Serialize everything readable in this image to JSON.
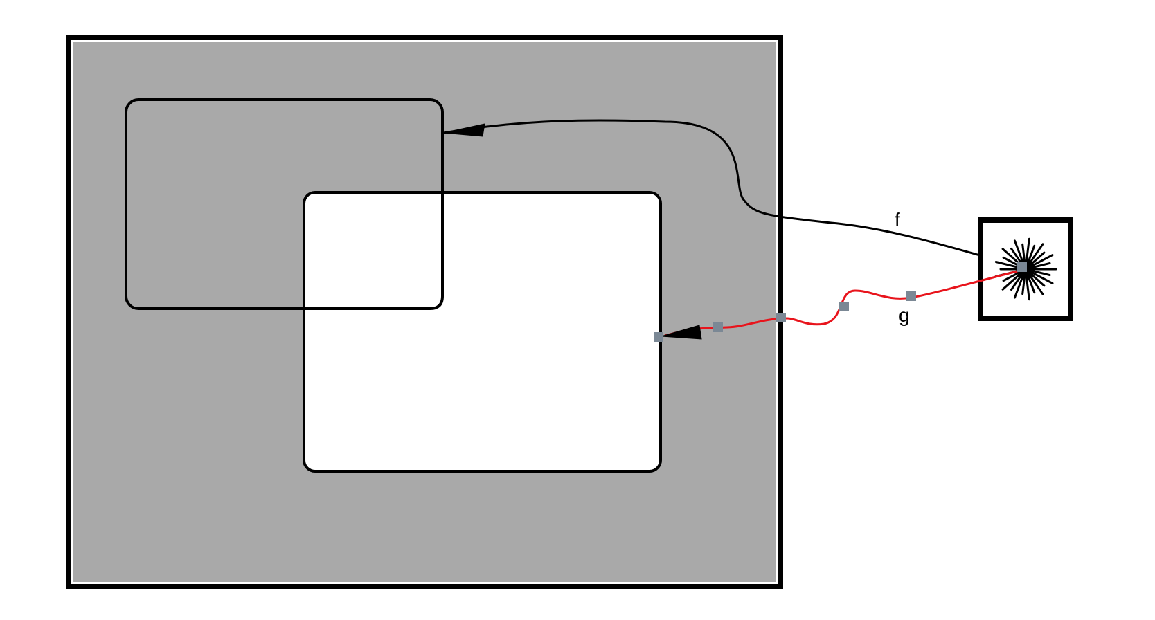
{
  "diagram": {
    "title": "",
    "colors": {
      "canvas": "#ffffff",
      "container_fill": "#a9a9a9",
      "container_border": "#000000",
      "container_inner_line": "#ffffff",
      "inner_box_fill": "#ffffff",
      "stroke": "#000000",
      "edge_f": "#000000",
      "edge_g": "#e8141c",
      "handle": "#7b8895"
    },
    "nodes": [
      {
        "id": "container",
        "label": "",
        "shape": "rectangle-double-border"
      },
      {
        "id": "box-a",
        "label": "",
        "shape": "rounded-rectangle",
        "fill": "none"
      },
      {
        "id": "box-b",
        "label": "",
        "shape": "rounded-rectangle",
        "fill": "white"
      },
      {
        "id": "starburst-node",
        "label": "",
        "shape": "square",
        "icon": "starburst-icon"
      }
    ],
    "edges": [
      {
        "id": "f",
        "label": "f",
        "from": "starburst-node",
        "to": "box-a",
        "style": "curved",
        "arrow": "filled-triangle"
      },
      {
        "id": "g",
        "label": "g",
        "from": "starburst-node",
        "to": "box-b",
        "style": "curved",
        "arrow": "filled-triangle",
        "selected": true,
        "handle_count": 6
      }
    ]
  }
}
